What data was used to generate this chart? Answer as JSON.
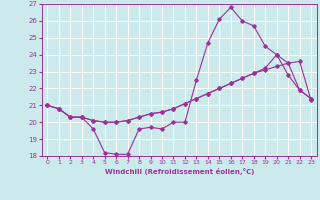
{
  "title": "",
  "xlabel": "Windchill (Refroidissement éolien,°C)",
  "ylabel": "",
  "bg_color": "#cce9eb",
  "grid_color": "#ffffff",
  "line_color": "#993399",
  "xlim": [
    -0.5,
    23.5
  ],
  "ylim": [
    18,
    27
  ],
  "xticks": [
    0,
    1,
    2,
    3,
    4,
    5,
    6,
    7,
    8,
    9,
    10,
    11,
    12,
    13,
    14,
    15,
    16,
    17,
    18,
    19,
    20,
    21,
    22,
    23
  ],
  "yticks": [
    18,
    19,
    20,
    21,
    22,
    23,
    24,
    25,
    26,
    27
  ],
  "series": [
    {
      "x": [
        0,
        1,
        2,
        3,
        4,
        5,
        6,
        7,
        8,
        9,
        10,
        11,
        12,
        13,
        14,
        15,
        16,
        17,
        18,
        19,
        20,
        21,
        22,
        23
      ],
      "y": [
        21.0,
        20.8,
        20.3,
        20.3,
        19.6,
        18.2,
        18.1,
        18.1,
        19.6,
        19.7,
        19.6,
        20.0,
        20.0,
        22.5,
        24.7,
        26.1,
        26.8,
        26.0,
        25.7,
        24.5,
        24.0,
        22.8,
        21.9,
        21.4
      ]
    },
    {
      "x": [
        0,
        1,
        2,
        3,
        4,
        5,
        6,
        7,
        8,
        9,
        10,
        11,
        12,
        13,
        14,
        15,
        16,
        17,
        18,
        19,
        20,
        21,
        22,
        23
      ],
      "y": [
        21.0,
        20.8,
        20.3,
        20.3,
        20.1,
        20.0,
        20.0,
        20.1,
        20.3,
        20.5,
        20.6,
        20.8,
        21.1,
        21.4,
        21.7,
        22.0,
        22.3,
        22.6,
        22.9,
        23.1,
        23.3,
        23.5,
        23.6,
        21.3
      ]
    },
    {
      "x": [
        0,
        1,
        2,
        3,
        4,
        5,
        6,
        7,
        8,
        9,
        10,
        11,
        12,
        13,
        14,
        15,
        16,
        17,
        18,
        19,
        20,
        21,
        22,
        23
      ],
      "y": [
        21.0,
        20.8,
        20.3,
        20.3,
        20.1,
        20.0,
        20.0,
        20.1,
        20.3,
        20.5,
        20.6,
        20.8,
        21.1,
        21.4,
        21.7,
        22.0,
        22.3,
        22.6,
        22.9,
        23.2,
        24.0,
        23.5,
        21.9,
        21.4
      ]
    }
  ]
}
